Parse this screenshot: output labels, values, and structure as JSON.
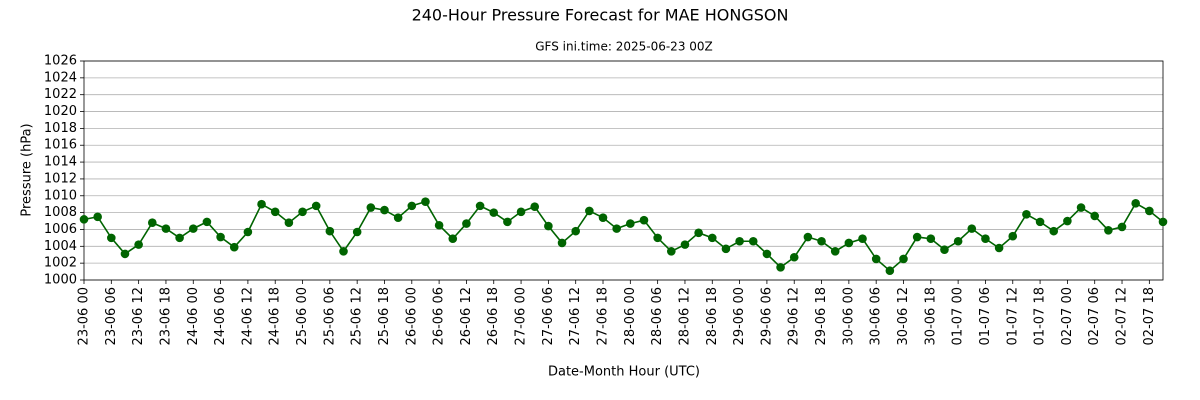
{
  "chart_data": {
    "type": "line",
    "title": "240-Hour Pressure Forecast for MAE HONGSON",
    "subtitle": "GFS ini.time: 2025-06-23 00Z",
    "xlabel": "Date-Month Hour (UTC)",
    "ylabel": "Pressure (hPa)",
    "categories": [
      "23-06 00",
      null,
      "23-06 06",
      null,
      "23-06 12",
      null,
      "23-06 18",
      null,
      "24-06 00",
      null,
      "24-06 06",
      null,
      "24-06 12",
      null,
      "24-06 18",
      null,
      "25-06 00",
      null,
      "25-06 06",
      null,
      "25-06 12",
      null,
      "25-06 18",
      null,
      "26-06 00",
      null,
      "26-06 06",
      null,
      "26-06 12",
      null,
      "26-06 18",
      null,
      "27-06 00",
      null,
      "27-06 06",
      null,
      "27-06 12",
      null,
      "27-06 18",
      null,
      "28-06 00",
      null,
      "28-06 06",
      null,
      "28-06 12",
      null,
      "28-06 18",
      null,
      "29-06 00",
      null,
      "29-06 06",
      null,
      "29-06 12",
      null,
      "29-06 18",
      null,
      "30-06 00",
      null,
      "30-06 06",
      null,
      "30-06 12",
      null,
      "30-06 18",
      null,
      "01-07 00",
      null,
      "01-07 06",
      null,
      "01-07 12",
      null,
      "01-07 18",
      null,
      "02-07 00",
      null,
      "02-07 06",
      null,
      "02-07 12",
      null,
      "02-07 18",
      null
    ],
    "values": [
      1007.2,
      1007.5,
      1005.0,
      1003.1,
      1004.2,
      1006.8,
      1006.1,
      1005.0,
      1006.1,
      1006.9,
      1005.1,
      1003.9,
      1005.7,
      1009.0,
      1008.1,
      1006.8,
      1008.1,
      1008.8,
      1005.8,
      1003.4,
      1005.7,
      1008.6,
      1008.3,
      1007.4,
      1008.8,
      1009.3,
      1006.5,
      1004.9,
      1006.7,
      1008.8,
      1008.0,
      1006.9,
      1008.1,
      1008.7,
      1006.4,
      1004.4,
      1005.8,
      1008.2,
      1007.4,
      1006.1,
      1006.7,
      1007.1,
      1005.0,
      1003.4,
      1004.2,
      1005.6,
      1005.0,
      1003.7,
      1004.6,
      1004.6,
      1003.1,
      1001.5,
      1002.7,
      1005.1,
      1004.6,
      1003.4,
      1004.4,
      1004.9,
      1002.5,
      1001.1,
      1002.5,
      1005.1,
      1004.9,
      1003.6,
      1004.6,
      1006.1,
      1004.9,
      1003.8,
      1005.2,
      1007.8,
      1006.9,
      1005.8,
      1007.0,
      1008.6,
      1007.6,
      1005.9,
      1006.3,
      1009.1,
      1008.2,
      1006.9
    ],
    "color": "#006400",
    "ylim": [
      1000,
      1026
    ],
    "yticks": [
      1000,
      1002,
      1004,
      1006,
      1008,
      1010,
      1012,
      1014,
      1016,
      1018,
      1020,
      1022,
      1024,
      1026
    ],
    "grid": true
  }
}
